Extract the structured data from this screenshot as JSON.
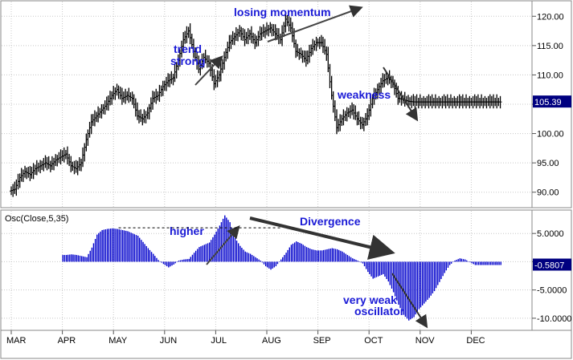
{
  "chart_data": [
    {
      "type": "ohlc",
      "title": "",
      "xlabel": "",
      "ylabel": "",
      "x_months": [
        "MAR",
        "APR",
        "MAY",
        "JUN",
        "JUL",
        "AUG",
        "SEP",
        "OCT",
        "NOV",
        "DEC"
      ],
      "y_ticks": [
        90,
        95,
        100,
        105,
        110,
        115,
        120
      ],
      "y_tick_labels": [
        "90.00",
        "95.00",
        "100.00",
        "105.00",
        "110.00",
        "115.00",
        "120.00"
      ],
      "ylim": [
        87.5,
        122.5
      ],
      "grid": true,
      "last_price": 105.39,
      "last_price_label": "105.39",
      "series": [
        {
          "x_months": [
            0.0,
            0.1,
            0.2,
            0.3,
            0.4,
            0.5,
            0.6,
            0.7,
            0.8,
            0.9,
            1.0,
            1.1,
            1.2,
            1.3,
            1.4,
            1.5,
            1.6,
            1.7,
            1.8,
            1.9,
            2.0,
            2.1,
            2.2,
            2.3,
            2.4,
            2.5,
            2.6,
            2.7,
            2.8,
            2.9,
            3.0,
            3.1,
            3.2,
            3.3,
            3.4,
            3.5,
            3.6,
            3.7,
            3.8,
            3.9,
            4.0,
            4.1,
            4.2,
            4.3,
            4.4,
            4.5,
            4.6,
            4.7,
            4.8,
            4.9,
            5.0,
            5.1,
            5.2,
            5.3,
            5.4,
            5.5,
            5.6,
            5.7,
            5.8,
            5.9,
            6.0,
            6.1,
            6.2,
            6.3,
            6.4,
            6.5,
            6.6,
            6.7,
            6.8,
            6.9,
            7.0,
            7.1,
            7.2,
            7.3,
            7.4,
            7.5,
            7.6,
            7.7,
            7.8,
            7.9,
            8.0,
            8.1,
            8.2,
            8.3,
            8.4,
            8.5,
            8.6,
            8.7,
            8.8,
            8.9,
            9.0,
            9.1,
            9.2,
            9.3,
            9.4,
            9.5
          ],
          "close": [
            90.5,
            92.5,
            93.5,
            93.0,
            94.0,
            94.5,
            95.0,
            94.5,
            95.5,
            96.0,
            96.5,
            94.5,
            94.0,
            95.0,
            99.0,
            102.0,
            103.0,
            104.0,
            105.0,
            106.5,
            107.5,
            106.0,
            106.5,
            106.0,
            103.0,
            102.5,
            103.5,
            106.0,
            106.5,
            108.0,
            109.0,
            109.5,
            112.5,
            116.0,
            117.5,
            114.0,
            111.0,
            113.0,
            112.0,
            108.5,
            110.0,
            113.0,
            115.5,
            116.5,
            117.5,
            116.0,
            117.0,
            115.5,
            117.0,
            117.5,
            118.0,
            117.0,
            116.0,
            119.5,
            118.0,
            114.0,
            113.5,
            112.5,
            114.5,
            115.5,
            115.5,
            113.5,
            106.5,
            101.0,
            102.5,
            103.5,
            104.0,
            102.5,
            101.5,
            103.0,
            106.0,
            107.5,
            109.0,
            109.5,
            108.5,
            106.0,
            105.8,
            105.5,
            105.4,
            105.39,
            105.39,
            105.39,
            105.39,
            105.39,
            105.39,
            105.39,
            105.39,
            105.39,
            105.39,
            105.39,
            105.39,
            105.39,
            105.39,
            105.39,
            105.39,
            105.39
          ]
        }
      ]
    },
    {
      "type": "bar",
      "title": "Osc(Close,5,35)",
      "xlabel": "",
      "ylabel": "",
      "x_months": [
        "MAR",
        "APR",
        "MAY",
        "JUN",
        "JUL",
        "AUG",
        "SEP",
        "OCT",
        "NOV",
        "DEC"
      ],
      "y_ticks": [
        5,
        0,
        -5,
        -10
      ],
      "y_tick_labels": [
        "5.0000",
        "0",
        "-5.0000",
        "-10.0000"
      ],
      "ylim": [
        -12,
        9
      ],
      "grid": true,
      "last_value": -0.5807,
      "last_value_label": "-0.5807",
      "higher_level": 6.0,
      "series": [
        {
          "x_months": [
            1.0,
            1.1,
            1.2,
            1.3,
            1.4,
            1.5,
            1.6,
            1.7,
            1.8,
            1.9,
            2.0,
            2.1,
            2.2,
            2.3,
            2.4,
            2.5,
            2.6,
            2.7,
            2.8,
            2.9,
            3.0,
            3.1,
            3.2,
            3.3,
            3.4,
            3.5,
            3.6,
            3.7,
            3.8,
            3.9,
            4.0,
            4.1,
            4.2,
            4.3,
            4.4,
            4.5,
            4.6,
            4.7,
            4.8,
            4.9,
            5.0,
            5.1,
            5.2,
            5.3,
            5.4,
            5.5,
            5.6,
            5.7,
            5.8,
            5.9,
            6.0,
            6.1,
            6.2,
            6.3,
            6.4,
            6.5,
            6.6,
            6.7,
            6.8,
            6.9,
            7.0,
            7.1,
            7.2,
            7.3,
            7.4,
            7.5,
            7.6,
            7.7,
            7.8,
            7.9,
            8.0,
            8.1,
            8.2,
            8.3,
            8.4,
            8.5,
            8.6,
            8.7,
            8.8,
            8.9,
            9.0,
            9.1,
            9.2,
            9.3,
            9.4,
            9.5
          ],
          "values": [
            1.2,
            1.3,
            1.2,
            1.0,
            0.8,
            2.5,
            4.8,
            5.6,
            5.8,
            5.9,
            5.8,
            5.6,
            5.4,
            5.0,
            4.6,
            3.5,
            2.4,
            1.4,
            0.3,
            -0.4,
            -1.0,
            -0.5,
            0.2,
            0.4,
            0.5,
            1.6,
            2.6,
            3.0,
            3.4,
            4.8,
            6.4,
            8.2,
            7.0,
            4.2,
            2.8,
            1.8,
            1.4,
            0.8,
            0.2,
            -0.8,
            -1.4,
            -0.8,
            0.4,
            1.6,
            3.0,
            3.6,
            3.2,
            2.6,
            2.2,
            2.0,
            2.0,
            2.2,
            2.4,
            2.2,
            1.8,
            1.2,
            0.6,
            0.2,
            -0.3,
            -1.8,
            -3.0,
            -2.6,
            -2.2,
            -3.5,
            -5.4,
            -7.6,
            -9.4,
            -10.4,
            -9.8,
            -8.4,
            -7.4,
            -6.4,
            -5.2,
            -3.6,
            -2.0,
            -0.6,
            0.2,
            0.6,
            0.4,
            -0.1,
            -0.5807,
            -0.5807,
            -0.5807,
            -0.5807,
            -0.5807,
            -0.5807
          ]
        }
      ]
    }
  ],
  "annotations": {
    "losing_momentum": "losing momentum",
    "trend_strong_1": "trend",
    "trend_strong_2": "strong",
    "weakness": "weakness",
    "higher": "higher",
    "divergence": "Divergence",
    "very_weak_1": "very weak",
    "very_weak_2": "oscillator"
  },
  "colors": {
    "price_bars": "#000000",
    "osc_bars": "#0000cc",
    "annotation_text": "#1a1ad6",
    "label_box": "#000080",
    "grid": "#c8c8c8"
  }
}
